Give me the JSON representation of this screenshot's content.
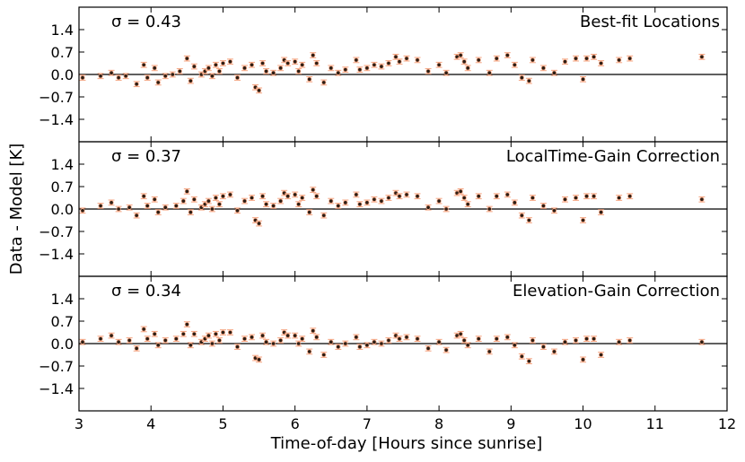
{
  "chart_data": {
    "type": "scatter",
    "xlabel": "Time-of-day [Hours since sunrise]",
    "ylabel": "Data - Model [K]",
    "xlim": [
      3,
      12
    ],
    "ylim": [
      -2.1,
      2.1
    ],
    "xticks": [
      3,
      4,
      5,
      6,
      7,
      8,
      9,
      10,
      11,
      12
    ],
    "xtick_labels": [
      "3",
      "4",
      "5",
      "6",
      "7",
      "8",
      "9",
      "10",
      "11",
      "12"
    ],
    "yticks": [
      1.4,
      0.7,
      0.0,
      -0.7,
      -1.4
    ],
    "ytick_labels": [
      "1.4",
      "0.7",
      "0.0",
      "−0.7",
      "−1.4"
    ],
    "error_bar_halfwidth": 0.08,
    "colors": {
      "point": "#2b1d14",
      "error": "#f4a582",
      "axis": "#000000"
    },
    "panels": [
      {
        "sigma_text": "σ = 0.43",
        "title": "Best-fit Locations",
        "points": [
          [
            3.05,
            -0.1
          ],
          [
            3.3,
            -0.05
          ],
          [
            3.45,
            0.05
          ],
          [
            3.55,
            -0.1
          ],
          [
            3.65,
            -0.05
          ],
          [
            3.8,
            -0.3
          ],
          [
            3.9,
            0.3
          ],
          [
            3.95,
            -0.1
          ],
          [
            4.05,
            0.2
          ],
          [
            4.1,
            -0.25
          ],
          [
            4.2,
            -0.05
          ],
          [
            4.3,
            0.0
          ],
          [
            4.4,
            0.1
          ],
          [
            4.5,
            0.5
          ],
          [
            4.55,
            -0.2
          ],
          [
            4.6,
            0.25
          ],
          [
            4.7,
            0.0
          ],
          [
            4.75,
            0.1
          ],
          [
            4.8,
            0.2
          ],
          [
            4.85,
            -0.05
          ],
          [
            4.9,
            0.3
          ],
          [
            4.95,
            0.1
          ],
          [
            5.0,
            0.35
          ],
          [
            5.1,
            0.4
          ],
          [
            5.2,
            -0.1
          ],
          [
            5.3,
            0.2
          ],
          [
            5.4,
            0.3
          ],
          [
            5.45,
            -0.4
          ],
          [
            5.5,
            -0.5
          ],
          [
            5.55,
            0.35
          ],
          [
            5.6,
            0.1
          ],
          [
            5.7,
            0.05
          ],
          [
            5.8,
            0.2
          ],
          [
            5.85,
            0.45
          ],
          [
            5.9,
            0.35
          ],
          [
            6.0,
            0.4
          ],
          [
            6.05,
            0.1
          ],
          [
            6.1,
            0.3
          ],
          [
            6.2,
            -0.15
          ],
          [
            6.25,
            0.6
          ],
          [
            6.3,
            0.35
          ],
          [
            6.4,
            -0.25
          ],
          [
            6.5,
            0.2
          ],
          [
            6.6,
            0.05
          ],
          [
            6.7,
            0.15
          ],
          [
            6.85,
            0.45
          ],
          [
            6.9,
            0.15
          ],
          [
            7.0,
            0.2
          ],
          [
            7.1,
            0.3
          ],
          [
            7.2,
            0.25
          ],
          [
            7.3,
            0.35
          ],
          [
            7.4,
            0.55
          ],
          [
            7.45,
            0.4
          ],
          [
            7.55,
            0.5
          ],
          [
            7.7,
            0.45
          ],
          [
            7.85,
            0.1
          ],
          [
            8.0,
            0.3
          ],
          [
            8.1,
            0.05
          ],
          [
            8.25,
            0.55
          ],
          [
            8.3,
            0.6
          ],
          [
            8.35,
            0.4
          ],
          [
            8.4,
            0.2
          ],
          [
            8.55,
            0.45
          ],
          [
            8.7,
            0.05
          ],
          [
            8.8,
            0.5
          ],
          [
            8.95,
            0.6
          ],
          [
            9.05,
            0.3
          ],
          [
            9.15,
            -0.1
          ],
          [
            9.25,
            -0.2
          ],
          [
            9.3,
            0.45
          ],
          [
            9.45,
            0.2
          ],
          [
            9.6,
            0.05
          ],
          [
            9.75,
            0.4
          ],
          [
            9.9,
            0.5
          ],
          [
            10.0,
            -0.15
          ],
          [
            10.05,
            0.5
          ],
          [
            10.15,
            0.55
          ],
          [
            10.25,
            0.35
          ],
          [
            10.5,
            0.45
          ],
          [
            10.65,
            0.5
          ],
          [
            11.65,
            0.55
          ]
        ]
      },
      {
        "sigma_text": "σ = 0.37",
        "title": "LocalTime-Gain Correction",
        "points": [
          [
            3.05,
            -0.05
          ],
          [
            3.3,
            0.1
          ],
          [
            3.45,
            0.2
          ],
          [
            3.55,
            0.0
          ],
          [
            3.7,
            0.05
          ],
          [
            3.8,
            -0.2
          ],
          [
            3.9,
            0.4
          ],
          [
            3.95,
            0.1
          ],
          [
            4.05,
            0.3
          ],
          [
            4.1,
            -0.1
          ],
          [
            4.2,
            0.05
          ],
          [
            4.35,
            0.1
          ],
          [
            4.45,
            0.25
          ],
          [
            4.5,
            0.55
          ],
          [
            4.55,
            -0.1
          ],
          [
            4.6,
            0.3
          ],
          [
            4.7,
            0.05
          ],
          [
            4.75,
            0.15
          ],
          [
            4.8,
            0.25
          ],
          [
            4.85,
            0.0
          ],
          [
            4.9,
            0.35
          ],
          [
            4.95,
            0.15
          ],
          [
            5.0,
            0.4
          ],
          [
            5.1,
            0.45
          ],
          [
            5.2,
            -0.05
          ],
          [
            5.3,
            0.25
          ],
          [
            5.4,
            0.35
          ],
          [
            5.45,
            -0.35
          ],
          [
            5.5,
            -0.45
          ],
          [
            5.55,
            0.4
          ],
          [
            5.6,
            0.15
          ],
          [
            5.7,
            0.1
          ],
          [
            5.8,
            0.25
          ],
          [
            5.85,
            0.5
          ],
          [
            5.9,
            0.4
          ],
          [
            6.0,
            0.45
          ],
          [
            6.05,
            0.15
          ],
          [
            6.1,
            0.35
          ],
          [
            6.2,
            -0.1
          ],
          [
            6.25,
            0.6
          ],
          [
            6.3,
            0.4
          ],
          [
            6.4,
            -0.2
          ],
          [
            6.5,
            0.25
          ],
          [
            6.6,
            0.1
          ],
          [
            6.7,
            0.2
          ],
          [
            6.85,
            0.45
          ],
          [
            6.9,
            0.15
          ],
          [
            7.0,
            0.2
          ],
          [
            7.1,
            0.3
          ],
          [
            7.2,
            0.25
          ],
          [
            7.3,
            0.35
          ],
          [
            7.4,
            0.5
          ],
          [
            7.45,
            0.4
          ],
          [
            7.55,
            0.45
          ],
          [
            7.7,
            0.4
          ],
          [
            7.85,
            0.05
          ],
          [
            8.0,
            0.25
          ],
          [
            8.1,
            0.0
          ],
          [
            8.25,
            0.5
          ],
          [
            8.3,
            0.55
          ],
          [
            8.35,
            0.35
          ],
          [
            8.4,
            0.15
          ],
          [
            8.55,
            0.4
          ],
          [
            8.7,
            0.0
          ],
          [
            8.8,
            0.4
          ],
          [
            8.95,
            0.45
          ],
          [
            9.05,
            0.2
          ],
          [
            9.15,
            -0.2
          ],
          [
            9.25,
            -0.35
          ],
          [
            9.3,
            0.35
          ],
          [
            9.45,
            0.1
          ],
          [
            9.6,
            -0.05
          ],
          [
            9.75,
            0.3
          ],
          [
            9.9,
            0.35
          ],
          [
            10.0,
            -0.35
          ],
          [
            10.05,
            0.4
          ],
          [
            10.15,
            0.4
          ],
          [
            10.25,
            -0.1
          ],
          [
            10.5,
            0.35
          ],
          [
            10.65,
            0.4
          ],
          [
            11.65,
            0.3
          ]
        ]
      },
      {
        "sigma_text": "σ = 0.34",
        "title": "Elevation-Gain Correction",
        "points": [
          [
            3.05,
            0.05
          ],
          [
            3.3,
            0.15
          ],
          [
            3.45,
            0.25
          ],
          [
            3.55,
            0.05
          ],
          [
            3.7,
            0.1
          ],
          [
            3.8,
            -0.15
          ],
          [
            3.9,
            0.45
          ],
          [
            3.95,
            0.15
          ],
          [
            4.05,
            0.3
          ],
          [
            4.1,
            -0.05
          ],
          [
            4.2,
            0.1
          ],
          [
            4.35,
            0.15
          ],
          [
            4.45,
            0.3
          ],
          [
            4.5,
            0.6
          ],
          [
            4.55,
            -0.05
          ],
          [
            4.6,
            0.3
          ],
          [
            4.7,
            0.05
          ],
          [
            4.75,
            0.15
          ],
          [
            4.8,
            0.25
          ],
          [
            4.85,
            0.0
          ],
          [
            4.9,
            0.3
          ],
          [
            4.95,
            0.1
          ],
          [
            5.0,
            0.35
          ],
          [
            5.1,
            0.35
          ],
          [
            5.2,
            -0.1
          ],
          [
            5.3,
            0.15
          ],
          [
            5.4,
            0.2
          ],
          [
            5.45,
            -0.45
          ],
          [
            5.5,
            -0.5
          ],
          [
            5.55,
            0.25
          ],
          [
            5.6,
            0.05
          ],
          [
            5.7,
            0.0
          ],
          [
            5.8,
            0.1
          ],
          [
            5.85,
            0.35
          ],
          [
            5.9,
            0.25
          ],
          [
            6.0,
            0.25
          ],
          [
            6.05,
            0.0
          ],
          [
            6.1,
            0.15
          ],
          [
            6.2,
            -0.25
          ],
          [
            6.25,
            0.4
          ],
          [
            6.3,
            0.2
          ],
          [
            6.4,
            -0.35
          ],
          [
            6.5,
            0.05
          ],
          [
            6.6,
            -0.1
          ],
          [
            6.7,
            0.0
          ],
          [
            6.85,
            0.2
          ],
          [
            6.9,
            -0.1
          ],
          [
            7.0,
            -0.05
          ],
          [
            7.1,
            0.05
          ],
          [
            7.2,
            0.0
          ],
          [
            7.3,
            0.1
          ],
          [
            7.4,
            0.25
          ],
          [
            7.45,
            0.15
          ],
          [
            7.55,
            0.2
          ],
          [
            7.7,
            0.15
          ],
          [
            7.85,
            -0.15
          ],
          [
            8.0,
            0.05
          ],
          [
            8.1,
            -0.2
          ],
          [
            8.25,
            0.25
          ],
          [
            8.3,
            0.3
          ],
          [
            8.35,
            0.1
          ],
          [
            8.4,
            -0.05
          ],
          [
            8.55,
            0.15
          ],
          [
            8.7,
            -0.25
          ],
          [
            8.8,
            0.15
          ],
          [
            8.95,
            0.2
          ],
          [
            9.05,
            -0.05
          ],
          [
            9.15,
            -0.4
          ],
          [
            9.25,
            -0.55
          ],
          [
            9.3,
            0.1
          ],
          [
            9.45,
            -0.1
          ],
          [
            9.6,
            -0.25
          ],
          [
            9.75,
            0.05
          ],
          [
            9.9,
            0.1
          ],
          [
            10.0,
            -0.5
          ],
          [
            10.05,
            0.15
          ],
          [
            10.15,
            0.15
          ],
          [
            10.25,
            -0.35
          ],
          [
            10.5,
            0.05
          ],
          [
            10.65,
            0.1
          ],
          [
            11.65,
            0.05
          ]
        ]
      }
    ]
  }
}
